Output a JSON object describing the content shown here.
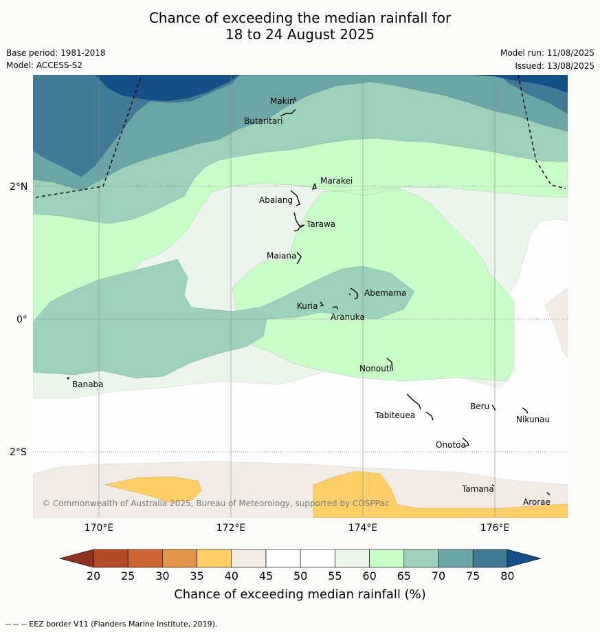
{
  "title": {
    "line1": "Chance of exceeding the median rainfall for",
    "line2": "18 to 24 August 2025"
  },
  "meta": {
    "base_period": "Base period: 1981-2018",
    "model": "Model: ACCESS-S2",
    "model_run": "Model run: 11/08/2025",
    "issued": "Issued: 13/08/2025"
  },
  "map": {
    "copyright": "© Commonwealth of Australia 2025, Bureau of Meteorology, supported by COSPPac",
    "lat_ticks": [
      "2°N",
      "0°",
      "2°S"
    ],
    "lon_ticks": [
      "170°E",
      "172°E",
      "174°E",
      "176°E"
    ],
    "places": [
      "Makin",
      "Butaritari",
      "Marakei",
      "Abaiang",
      "Tarawa",
      "Maiana",
      "Abemama",
      "Kuria",
      "Aranuka",
      "Nonouti",
      "Banaba",
      "Beru",
      "Tabiteuea",
      "Nikunau",
      "Onotoa",
      "Tamana",
      "Arorae"
    ]
  },
  "colorbar": {
    "title": "Chance of exceeding median rainfall (%)",
    "labels": [
      "20",
      "25",
      "30",
      "35",
      "40",
      "45",
      "50",
      "55",
      "60",
      "65",
      "70",
      "75",
      "80"
    ],
    "colors": [
      "#b34a26",
      "#cd6632",
      "#e39649",
      "#fece68",
      "#f2ece6",
      "#ffffff",
      "#ffffff",
      "#ebf5eb",
      "#c9fcc8",
      "#9dd1bb",
      "#6ba6a7",
      "#427997",
      "#154f85"
    ],
    "under_color": "#8e3021",
    "over_color": "#154f85"
  },
  "footer": "--  --  -- EEZ border V11 (Flanders Marine Institute, 2019)."
}
